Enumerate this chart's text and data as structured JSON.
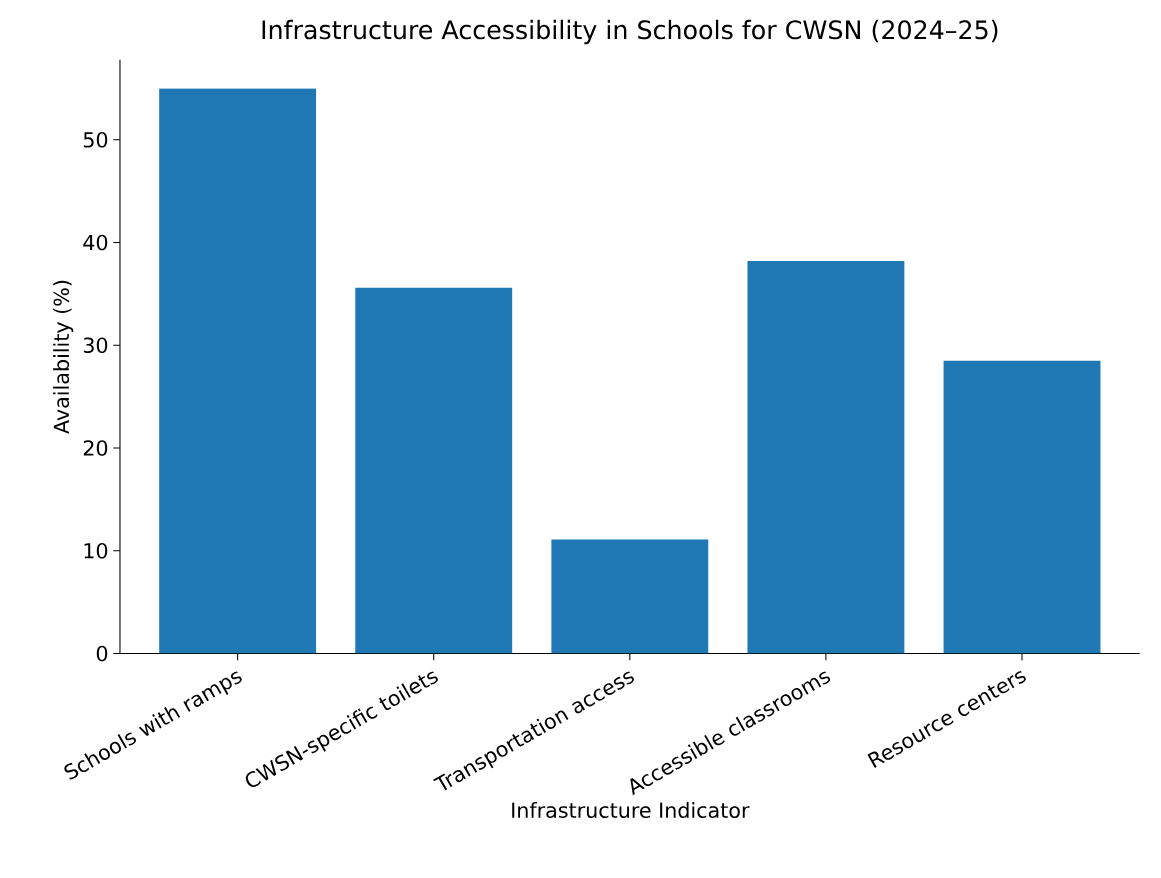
{
  "chart_data": {
    "type": "bar",
    "title": "Infrastructure Accessibility in Schools for CWSN (2024–25)",
    "xlabel": "Infrastructure Indicator",
    "ylabel": "Availability (%)",
    "categories": [
      "Schools with ramps",
      "CWSN-specific toilets",
      "Transportation access",
      "Accessible classrooms",
      "Resource centers"
    ],
    "values": [
      55,
      35.6,
      11.1,
      38.2,
      28.5
    ],
    "color": "#1f77b4",
    "ylim": [
      0,
      57.8
    ],
    "yticks": [
      0,
      10,
      20,
      30,
      40,
      50
    ],
    "grid": false
  }
}
